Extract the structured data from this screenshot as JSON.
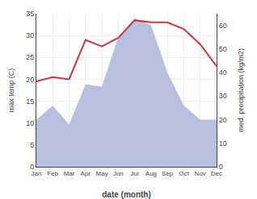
{
  "chart_data": {
    "type": "line",
    "xlabel": "date (month)",
    "ylabel": "max temp (C)",
    "y2label": "med. precipitation (kg/m2)",
    "categories": [
      "Jan",
      "Feb",
      "Mar",
      "Apr",
      "May",
      "Jun",
      "Jul",
      "Aug",
      "Sep",
      "Oct",
      "Nov",
      "Dec"
    ],
    "series": [
      {
        "type": "area",
        "axis": "y2",
        "color": "#b8c0e0",
        "values": [
          20,
          26,
          18,
          35,
          34,
          55,
          63,
          60,
          40,
          26,
          20,
          20
        ]
      },
      {
        "type": "line",
        "color": "#c83a3a",
        "values": [
          19.5,
          20.5,
          20.0,
          29.0,
          27.5,
          29.5,
          33.5,
          33.0,
          33.0,
          31.5,
          28.0,
          23.0
        ]
      }
    ],
    "ylim": [
      0,
      35
    ],
    "yticks": [
      0,
      5,
      10,
      15,
      20,
      25,
      30,
      35
    ],
    "y2lim": [
      0,
      65
    ],
    "y2ticks": [
      0,
      10,
      20,
      30,
      40,
      50,
      60
    ],
    "grid": true
  }
}
